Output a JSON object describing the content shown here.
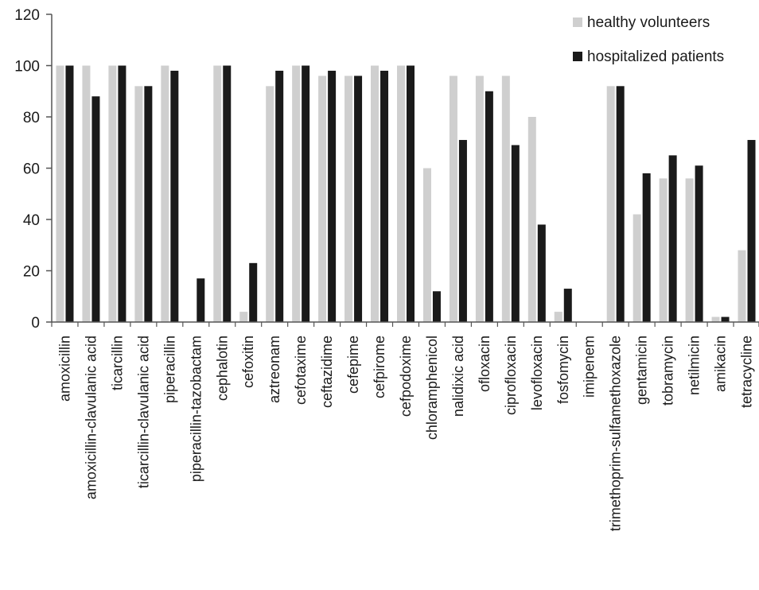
{
  "chart_data": {
    "type": "bar",
    "title": "",
    "xlabel": "",
    "ylabel": "",
    "ylim": [
      0,
      120
    ],
    "yticks": [
      0,
      20,
      40,
      60,
      80,
      100,
      120
    ],
    "grid": false,
    "legend_position": "top-right",
    "categories": [
      "amoxicillin",
      "amoxicillin-clavulanic acid",
      "ticarcillin",
      "ticarcillin-clavulanic acid",
      "piperacillin",
      "piperacillin-tazobactam",
      "cephalotin",
      "cefoxitin",
      "aztreonam",
      "cefotaxime",
      "ceftazidime",
      "cefepime",
      "cefpirome",
      "cefpodoxime",
      "chloramphenicol",
      "nalidixic acid",
      "ofloxacin",
      "ciprofloxacin",
      "levofloxacin",
      "fosfomycin",
      "imipenem",
      "trimethoprim-sulfamethoxazole",
      "gentamicin",
      "tobramycin",
      "netilmicin",
      "amikacin",
      "tetracycline"
    ],
    "series": [
      {
        "name": "healthy volunteers",
        "color": "#cfcfcf",
        "values": [
          100,
          100,
          100,
          92,
          100,
          0,
          100,
          4,
          92,
          100,
          96,
          96,
          100,
          100,
          60,
          96,
          96,
          96,
          80,
          4,
          0,
          92,
          42,
          56,
          56,
          2,
          28
        ]
      },
      {
        "name": "hospitalized patients",
        "color": "#1a1a1a",
        "values": [
          100,
          88,
          100,
          92,
          98,
          17,
          100,
          23,
          98,
          100,
          98,
          96,
          98,
          100,
          12,
          71,
          90,
          69,
          38,
          13,
          0,
          92,
          58,
          65,
          61,
          2,
          71
        ]
      }
    ]
  }
}
